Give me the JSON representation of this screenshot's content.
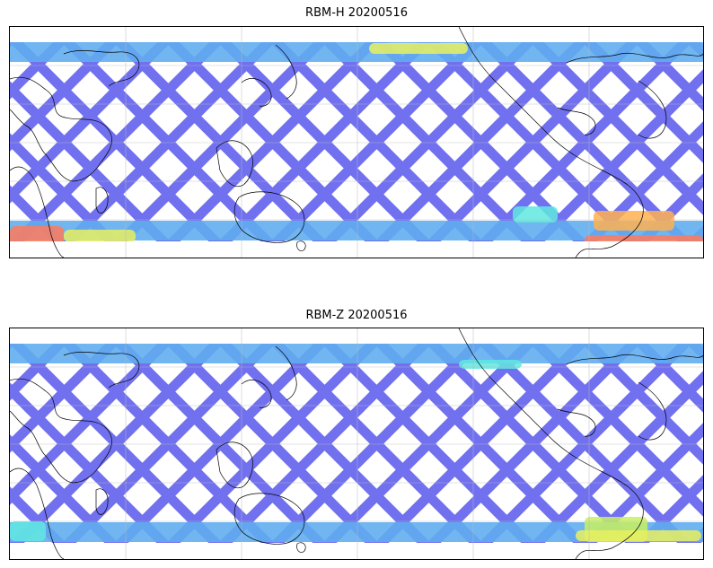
{
  "panels": [
    {
      "title": "RBM-H 20200516",
      "colors": {
        "track_base": "#6a6af0",
        "track_alt": "#5aa8f0",
        "hot_1": "#ff7a5a",
        "hot_2": "#ffb050",
        "warm": "#e8f060",
        "cyan": "#60e8e0"
      }
    },
    {
      "title": "RBM-Z 20200516",
      "colors": {
        "track_base": "#6a6af0",
        "track_alt": "#5aa8f0",
        "hot_1": "#c8f060",
        "hot_2": "#e8f060",
        "warm": "#c8f060",
        "cyan": "#60e8e0"
      }
    }
  ]
}
